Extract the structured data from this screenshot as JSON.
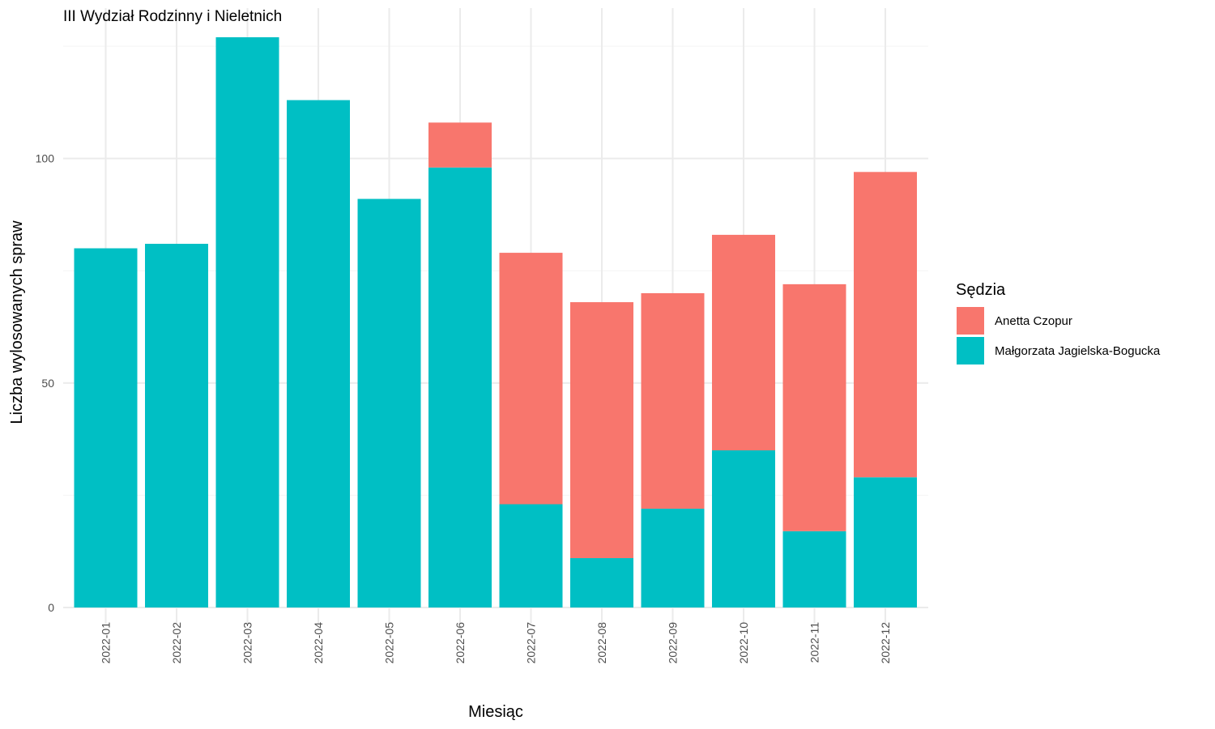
{
  "chart_data": {
    "type": "bar",
    "stacked": true,
    "title": "III Wydział Rodzinny i Nieletnich",
    "xlabel": "Miesiąc",
    "ylabel": "Liczba wylosowanych spraw",
    "ylim": [
      0,
      127
    ],
    "yticks": [
      0,
      50,
      100
    ],
    "grid": true,
    "legend_title": "Sędzia",
    "legend_position": "right",
    "categories": [
      "2022-01",
      "2022-02",
      "2022-03",
      "2022-04",
      "2022-05",
      "2022-06",
      "2022-07",
      "2022-08",
      "2022-09",
      "2022-10",
      "2022-11",
      "2022-12"
    ],
    "series": [
      {
        "name": "Małgorzata Jagielska-Bogucka",
        "color": "#00BFC4",
        "values": [
          80,
          81,
          127,
          113,
          91,
          98,
          23,
          11,
          22,
          35,
          17,
          29
        ]
      },
      {
        "name": "Anetta Czopur",
        "color": "#F8766D",
        "values": [
          0,
          0,
          0,
          0,
          0,
          10,
          56,
          57,
          48,
          48,
          55,
          68
        ]
      }
    ],
    "legend_order": [
      1,
      0
    ]
  }
}
